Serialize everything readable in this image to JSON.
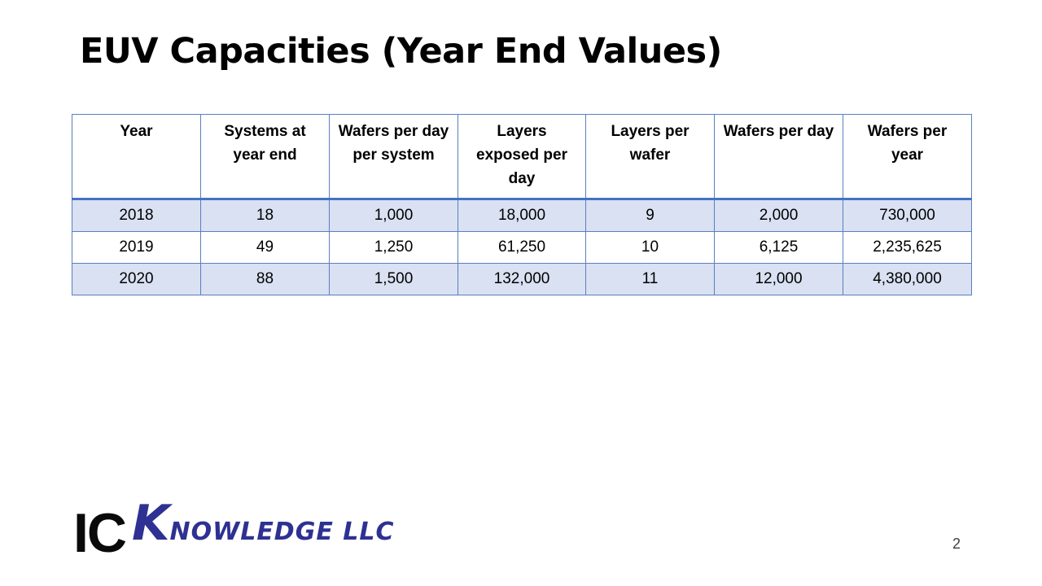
{
  "slide": {
    "title": "EUV Capacities (Year End Values)",
    "page_number": "2"
  },
  "table": {
    "headers": [
      "Year",
      "Systems at year end",
      "Wafers per day per system",
      "Layers exposed per day",
      "Layers per wafer",
      "Wafers per day",
      "Wafers per year"
    ],
    "rows": [
      [
        "2018",
        "18",
        "1,000",
        "18,000",
        "9",
        "2,000",
        "730,000"
      ],
      [
        "2019",
        "49",
        "1,250",
        "61,250",
        "10",
        "6,125",
        "2,235,625"
      ],
      [
        "2020",
        "88",
        "1,500",
        "132,000",
        "11",
        "12,000",
        "4,380,000"
      ]
    ]
  },
  "logo": {
    "text_ic": "IC",
    "text_k": "K",
    "text_rest": "NOWLEDGE LLC"
  },
  "colors": {
    "band_fill": "#d9e1f2",
    "border": "#5b7fbf",
    "header_rule": "#4472c4",
    "logo_blue": "#2e3192"
  }
}
